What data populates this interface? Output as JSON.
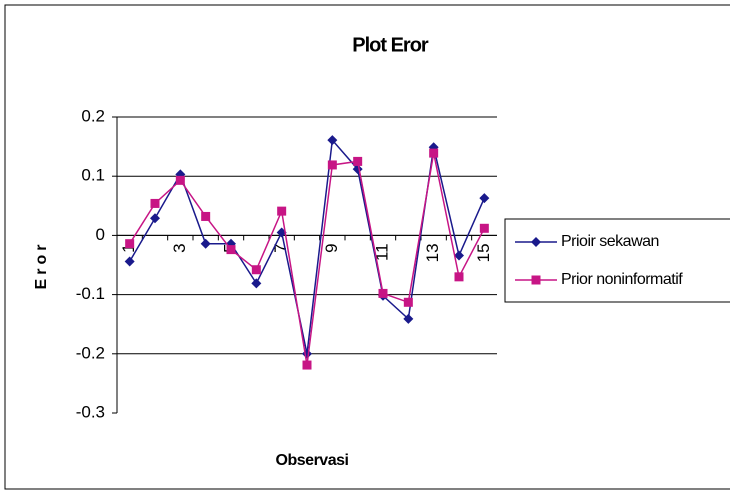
{
  "chart_data": {
    "type": "line",
    "title": "Plot Eror",
    "x_label": "Observasi",
    "y_label": "Eror",
    "categories": [
      "1",
      null,
      "3",
      null,
      "5",
      null,
      "7",
      null,
      "9",
      null,
      "11",
      null,
      "13",
      null,
      "15"
    ],
    "series": [
      {
        "name": "Prioir sekawan",
        "color": "#1a1a8c",
        "marker": "diamond",
        "values": [
          -0.044,
          0.029,
          0.103,
          -0.014,
          -0.014,
          -0.081,
          0.005,
          -0.2,
          0.161,
          0.112,
          -0.102,
          -0.141,
          0.149,
          -0.034,
          0.063
        ]
      },
      {
        "name": "Prior noninformatif",
        "color": "#c71585",
        "marker": "square",
        "values": [
          -0.014,
          0.054,
          0.093,
          0.032,
          -0.024,
          -0.058,
          0.041,
          -0.219,
          0.119,
          0.125,
          -0.098,
          -0.113,
          0.139,
          -0.07,
          0.012
        ]
      }
    ],
    "ylim": [
      -0.3,
      0.2
    ],
    "yticks": [
      0.2,
      0.1,
      0,
      -0.1,
      -0.2,
      -0.3
    ],
    "grid": true,
    "legend": "right"
  }
}
